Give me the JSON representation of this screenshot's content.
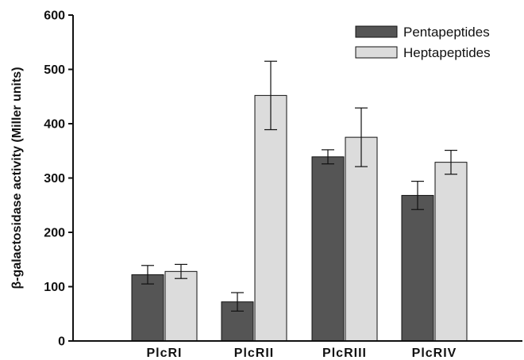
{
  "chart_data": {
    "type": "bar",
    "title": "",
    "xlabel": "",
    "ylabel": "β-galactosidase activity (Miller units)",
    "ylim": [
      0,
      600
    ],
    "yticks": [
      0,
      100,
      200,
      300,
      400,
      500,
      600
    ],
    "categories": [
      "PlcRI",
      "PlcRII",
      "PlcRIII",
      "PlcRIV"
    ],
    "series": [
      {
        "name": "Pentapeptides",
        "values": [
          122,
          72,
          339,
          268
        ],
        "errors": [
          17,
          17,
          13,
          26
        ],
        "color": "#555555"
      },
      {
        "name": "Heptapeptides",
        "values": [
          128,
          452,
          375,
          329
        ],
        "errors": [
          13,
          63,
          54,
          22
        ],
        "color": "#dcdcdc"
      }
    ],
    "legend": "top-right",
    "grid": false,
    "error_bars": true
  }
}
